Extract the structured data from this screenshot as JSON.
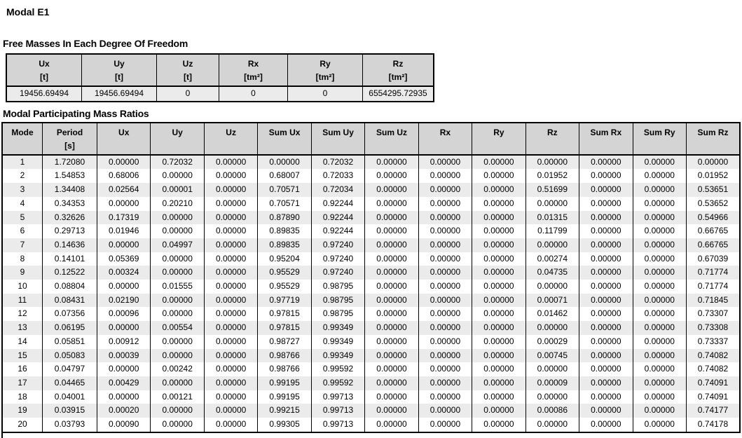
{
  "title": "Modal E1",
  "free_masses": {
    "heading": "Free Masses In Each Degree Of Freedom",
    "columns": [
      {
        "label": "Ux",
        "unit": "[t]"
      },
      {
        "label": "Uy",
        "unit": "[t]"
      },
      {
        "label": "Uz",
        "unit": "[t]"
      },
      {
        "label": "Rx",
        "unit": "[tm²]"
      },
      {
        "label": "Ry",
        "unit": "[tm²]"
      },
      {
        "label": "Rz",
        "unit": "[tm²]"
      }
    ],
    "values": [
      "19456.69494",
      "19456.69494",
      "0",
      "0",
      "0",
      "6554295.72935"
    ]
  },
  "modal_ratios": {
    "heading": "Modal Participating Mass Ratios",
    "columns": [
      {
        "label": "Mode",
        "unit": ""
      },
      {
        "label": "Period",
        "unit": "[s]"
      },
      {
        "label": "Ux",
        "unit": ""
      },
      {
        "label": "Uy",
        "unit": ""
      },
      {
        "label": "Uz",
        "unit": ""
      },
      {
        "label": "Sum Ux",
        "unit": ""
      },
      {
        "label": "Sum Uy",
        "unit": ""
      },
      {
        "label": "Sum Uz",
        "unit": ""
      },
      {
        "label": "Rx",
        "unit": ""
      },
      {
        "label": "Ry",
        "unit": ""
      },
      {
        "label": "Rz",
        "unit": ""
      },
      {
        "label": "Sum Rx",
        "unit": ""
      },
      {
        "label": "Sum Ry",
        "unit": ""
      },
      {
        "label": "Sum Rz",
        "unit": ""
      }
    ],
    "rows": [
      [
        "1",
        "1.72080",
        "0.00000",
        "0.72032",
        "0.00000",
        "0.00000",
        "0.72032",
        "0.00000",
        "0.00000",
        "0.00000",
        "0.00000",
        "0.00000",
        "0.00000",
        "0.00000"
      ],
      [
        "2",
        "1.54853",
        "0.68006",
        "0.00000",
        "0.00000",
        "0.68007",
        "0.72033",
        "0.00000",
        "0.00000",
        "0.00000",
        "0.01952",
        "0.00000",
        "0.00000",
        "0.01952"
      ],
      [
        "3",
        "1.34408",
        "0.02564",
        "0.00001",
        "0.00000",
        "0.70571",
        "0.72034",
        "0.00000",
        "0.00000",
        "0.00000",
        "0.51699",
        "0.00000",
        "0.00000",
        "0.53651"
      ],
      [
        "4",
        "0.34353",
        "0.00000",
        "0.20210",
        "0.00000",
        "0.70571",
        "0.92244",
        "0.00000",
        "0.00000",
        "0.00000",
        "0.00000",
        "0.00000",
        "0.00000",
        "0.53652"
      ],
      [
        "5",
        "0.32626",
        "0.17319",
        "0.00000",
        "0.00000",
        "0.87890",
        "0.92244",
        "0.00000",
        "0.00000",
        "0.00000",
        "0.01315",
        "0.00000",
        "0.00000",
        "0.54966"
      ],
      [
        "6",
        "0.29713",
        "0.01946",
        "0.00000",
        "0.00000",
        "0.89835",
        "0.92244",
        "0.00000",
        "0.00000",
        "0.00000",
        "0.11799",
        "0.00000",
        "0.00000",
        "0.66765"
      ],
      [
        "7",
        "0.14636",
        "0.00000",
        "0.04997",
        "0.00000",
        "0.89835",
        "0.97240",
        "0.00000",
        "0.00000",
        "0.00000",
        "0.00000",
        "0.00000",
        "0.00000",
        "0.66765"
      ],
      [
        "8",
        "0.14101",
        "0.05369",
        "0.00000",
        "0.00000",
        "0.95204",
        "0.97240",
        "0.00000",
        "0.00000",
        "0.00000",
        "0.00274",
        "0.00000",
        "0.00000",
        "0.67039"
      ],
      [
        "9",
        "0.12522",
        "0.00324",
        "0.00000",
        "0.00000",
        "0.95529",
        "0.97240",
        "0.00000",
        "0.00000",
        "0.00000",
        "0.04735",
        "0.00000",
        "0.00000",
        "0.71774"
      ],
      [
        "10",
        "0.08804",
        "0.00000",
        "0.01555",
        "0.00000",
        "0.95529",
        "0.98795",
        "0.00000",
        "0.00000",
        "0.00000",
        "0.00000",
        "0.00000",
        "0.00000",
        "0.71774"
      ],
      [
        "11",
        "0.08431",
        "0.02190",
        "0.00000",
        "0.00000",
        "0.97719",
        "0.98795",
        "0.00000",
        "0.00000",
        "0.00000",
        "0.00071",
        "0.00000",
        "0.00000",
        "0.71845"
      ],
      [
        "12",
        "0.07356",
        "0.00096",
        "0.00000",
        "0.00000",
        "0.97815",
        "0.98795",
        "0.00000",
        "0.00000",
        "0.00000",
        "0.01462",
        "0.00000",
        "0.00000",
        "0.73307"
      ],
      [
        "13",
        "0.06195",
        "0.00000",
        "0.00554",
        "0.00000",
        "0.97815",
        "0.99349",
        "0.00000",
        "0.00000",
        "0.00000",
        "0.00000",
        "0.00000",
        "0.00000",
        "0.73308"
      ],
      [
        "14",
        "0.05851",
        "0.00912",
        "0.00000",
        "0.00000",
        "0.98727",
        "0.99349",
        "0.00000",
        "0.00000",
        "0.00000",
        "0.00029",
        "0.00000",
        "0.00000",
        "0.73337"
      ],
      [
        "15",
        "0.05083",
        "0.00039",
        "0.00000",
        "0.00000",
        "0.98766",
        "0.99349",
        "0.00000",
        "0.00000",
        "0.00000",
        "0.00745",
        "0.00000",
        "0.00000",
        "0.74082"
      ],
      [
        "16",
        "0.04797",
        "0.00000",
        "0.00242",
        "0.00000",
        "0.98766",
        "0.99592",
        "0.00000",
        "0.00000",
        "0.00000",
        "0.00000",
        "0.00000",
        "0.00000",
        "0.74082"
      ],
      [
        "17",
        "0.04465",
        "0.00429",
        "0.00000",
        "0.00000",
        "0.99195",
        "0.99592",
        "0.00000",
        "0.00000",
        "0.00000",
        "0.00009",
        "0.00000",
        "0.00000",
        "0.74091"
      ],
      [
        "18",
        "0.04001",
        "0.00000",
        "0.00121",
        "0.00000",
        "0.99195",
        "0.99713",
        "0.00000",
        "0.00000",
        "0.00000",
        "0.00000",
        "0.00000",
        "0.00000",
        "0.74091"
      ],
      [
        "19",
        "0.03915",
        "0.00020",
        "0.00000",
        "0.00000",
        "0.99215",
        "0.99713",
        "0.00000",
        "0.00000",
        "0.00000",
        "0.00086",
        "0.00000",
        "0.00000",
        "0.74177"
      ],
      [
        "20",
        "0.03793",
        "0.00090",
        "0.00000",
        "0.00000",
        "0.99305",
        "0.99713",
        "0.00000",
        "0.00000",
        "0.00000",
        "0.00000",
        "0.00000",
        "0.00000",
        "0.74178"
      ]
    ]
  },
  "colors": {
    "header_bg": "#d4d4d4",
    "row_alt_bg": "#ebebeb",
    "row_bg": "#ffffff",
    "border": "#000000"
  }
}
